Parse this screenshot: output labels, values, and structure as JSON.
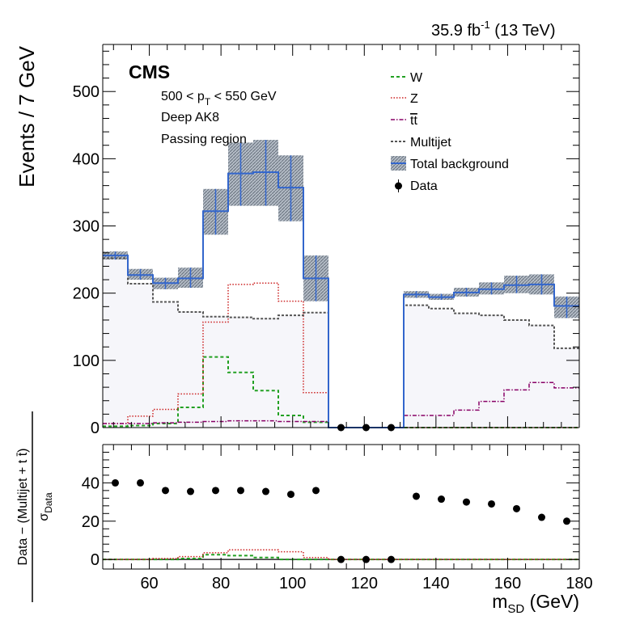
{
  "header": {
    "lumi": "35.9 fb",
    "lumi_sup": "-1",
    "energy": " (13 TeV)"
  },
  "labels": {
    "cms": "CMS",
    "pt_prefix": "500 < p",
    "pt_sub": "T",
    "pt_suffix": " < 550 GeV",
    "tagger": "Deep AK8",
    "region": "Passing region"
  },
  "colors": {
    "W": "#22a022",
    "Z": "#cc2222",
    "tt": "#880066",
    "Multijet": "#555555",
    "Total": "#3366cc",
    "band": "#8899aa",
    "Data": "#000000"
  },
  "chart_data": [
    {
      "type": "line",
      "ylabel": "Events / 7 GeV",
      "xlim": [
        47,
        180
      ],
      "ylim": [
        0,
        570
      ],
      "yticks": [
        0,
        100,
        200,
        300,
        400,
        500
      ],
      "bin_edges": [
        47,
        54,
        61,
        68,
        75,
        82,
        89,
        96,
        103,
        110,
        117,
        124,
        131,
        138,
        145,
        152,
        159,
        166,
        173,
        180
      ],
      "legend": [
        "W",
        "Z",
        "tt",
        "Multijet",
        "Total background",
        "Data"
      ],
      "legend_position": "top-right",
      "series": [
        {
          "name": "W",
          "key": "W",
          "style": "dashed",
          "values": [
            2,
            3,
            6,
            30,
            105,
            82,
            55,
            18,
            8,
            0,
            0,
            0,
            0,
            0,
            0,
            0,
            0,
            0,
            0
          ]
        },
        {
          "name": "Z",
          "key": "Z",
          "style": "dotted",
          "values": [
            6,
            17,
            27,
            50,
            157,
            213,
            215,
            188,
            52,
            0,
            0,
            0,
            0,
            0,
            0,
            0,
            0,
            0,
            0
          ]
        },
        {
          "name": "tt",
          "key": "tt",
          "style": "dashdot",
          "values": [
            6,
            6,
            7,
            8,
            9,
            10,
            10,
            9,
            9,
            0,
            0,
            0,
            18,
            18,
            26,
            39,
            56,
            67,
            59
          ]
        },
        {
          "name": "Multijet",
          "key": "Multijet",
          "style": "dense-dash",
          "values": [
            252,
            214,
            187,
            172,
            165,
            164,
            162,
            167,
            171,
            0,
            0,
            0,
            182,
            177,
            170,
            167,
            160,
            152,
            118
          ]
        },
        {
          "name": "Total background",
          "key": "Total",
          "style": "solid",
          "values": [
            256,
            227,
            215,
            222,
            322,
            378,
            380,
            357,
            222,
            0,
            0,
            0,
            198,
            194,
            201,
            206,
            212,
            213,
            181
          ]
        }
      ],
      "band": {
        "name": "Total background",
        "lo": [
          250,
          220,
          206,
          208,
          287,
          330,
          330,
          307,
          188,
          0,
          0,
          0,
          193,
          190,
          195,
          198,
          200,
          198,
          163
        ],
        "hi": [
          262,
          236,
          223,
          238,
          355,
          424,
          428,
          405,
          256,
          0,
          0,
          0,
          203,
          199,
          208,
          216,
          226,
          228,
          195
        ]
      },
      "data_points": {
        "name": "Data",
        "x": [
          113.5,
          120.5,
          127.5
        ],
        "y": [
          0,
          0,
          0
        ]
      }
    },
    {
      "type": "scatter",
      "xlabel": "m",
      "xlabel_sub": "SD",
      "xlabel_unit": " (GeV)",
      "ylabel_num": "Data − (Multijet + t t̄)",
      "ylabel_den": "σ",
      "ylabel_den_sub": "Data",
      "xlim": [
        47,
        180
      ],
      "ylim": [
        -5,
        60
      ],
      "xticks": [
        60,
        80,
        100,
        120,
        140,
        160,
        180
      ],
      "yticks": [
        0,
        20,
        40
      ],
      "points": {
        "x": [
          50.5,
          57.5,
          64.5,
          71.5,
          78.5,
          85.5,
          92.5,
          99.5,
          106.5,
          113.5,
          120.5,
          127.5,
          134.5,
          141.5,
          148.5,
          155.5,
          162.5,
          169.5,
          176.5
        ],
        "y": [
          40,
          40,
          36,
          35.5,
          36,
          36,
          35.5,
          34,
          36,
          0,
          0,
          0,
          33,
          31.5,
          30,
          29,
          26.5,
          22,
          20
        ]
      },
      "series": [
        {
          "name": "W",
          "key": "W",
          "style": "dashed",
          "values": [
            0,
            0,
            0,
            0.5,
            2.5,
            2,
            1,
            0,
            0,
            0,
            0,
            0,
            0,
            0,
            0,
            0,
            0,
            0,
            0
          ]
        },
        {
          "name": "Z",
          "key": "Z",
          "style": "dotted",
          "values": [
            0,
            0,
            0.5,
            1.5,
            3.5,
            5,
            5,
            4,
            1,
            0,
            0,
            0,
            0,
            0,
            0,
            0,
            0,
            0,
            0
          ]
        }
      ]
    }
  ]
}
